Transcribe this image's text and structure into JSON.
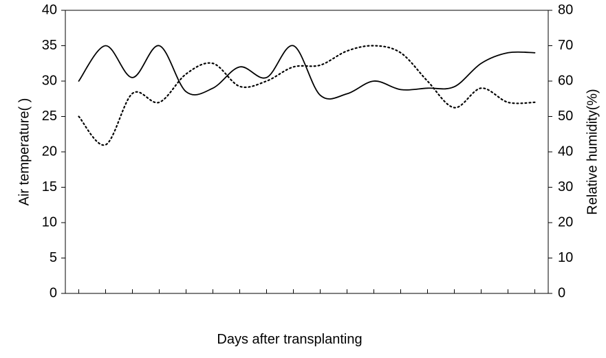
{
  "chart_data": {
    "type": "line",
    "title": "",
    "xlabel": "Days after transplanting",
    "ylabel_left": "Air temperature(  )",
    "ylabel_right": "Relative humidity(%)",
    "ylim_left": [
      0,
      40
    ],
    "ylim_right": [
      0,
      80
    ],
    "yticks_left": [
      "0",
      "5",
      "10",
      "15",
      "20",
      "25",
      "30",
      "35",
      "40"
    ],
    "yticks_right": [
      "0",
      "10",
      "20",
      "30",
      "40",
      "50",
      "60",
      "70",
      "80"
    ],
    "x": [
      1,
      2,
      3,
      4,
      5,
      6,
      7,
      8,
      9,
      10,
      11,
      12,
      13,
      14,
      15,
      16,
      17,
      18
    ],
    "xlim": [
      0.5,
      18.5
    ],
    "grid": false,
    "legend": "none",
    "series": [
      {
        "axis": "left",
        "style": "solid",
        "values": [
          30,
          35,
          30.5,
          35,
          28.5,
          29,
          32,
          30.5,
          35,
          28,
          28.2,
          30,
          28.8,
          29,
          29.2,
          32.5,
          34,
          34
        ]
      },
      {
        "axis": "right",
        "style": "dotted",
        "values": [
          50,
          42,
          56.5,
          54,
          62,
          65,
          58.5,
          60,
          64,
          64.5,
          68.5,
          70,
          68,
          60,
          52.5,
          58,
          54,
          54
        ]
      }
    ],
    "x_values_used": 18
  }
}
